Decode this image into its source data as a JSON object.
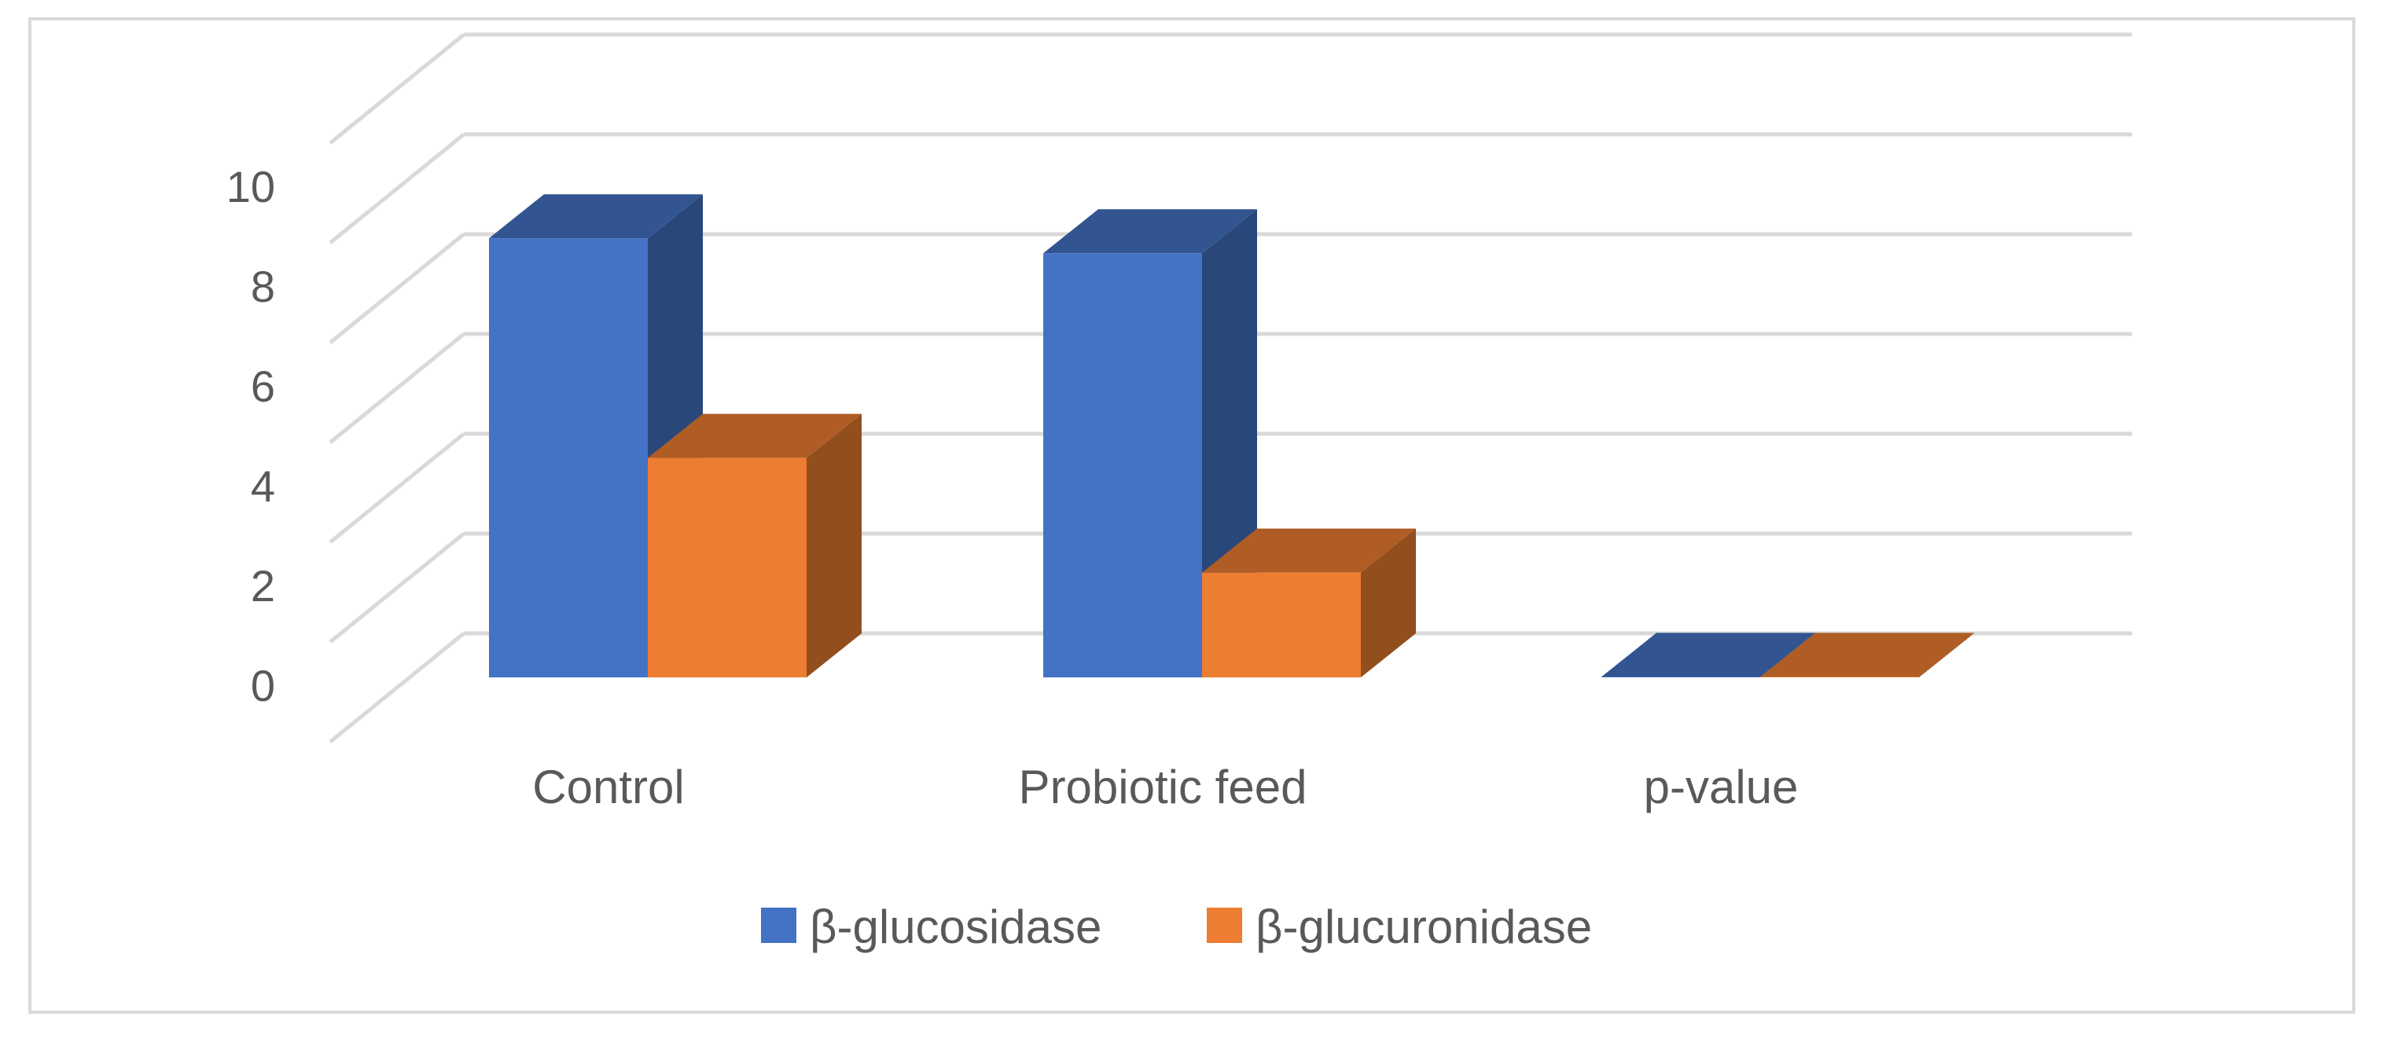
{
  "chart_data": {
    "type": "bar",
    "style": "3d-clustered-column",
    "title": "",
    "xlabel": "",
    "ylabel": "",
    "categories": [
      "Control",
      "Probiotic feed",
      "p-value"
    ],
    "series": [
      {
        "name": "β-glucosidase",
        "values": [
          8.8,
          8.5,
          0.01
        ],
        "color": "#4472C4"
      },
      {
        "name": "β-glucuronidase",
        "values": [
          4.4,
          2.1,
          0.01
        ],
        "color": "#ED7D31"
      }
    ],
    "ylim": [
      0,
      12
    ],
    "yticks": [
      0,
      2,
      4,
      6,
      8,
      10
    ],
    "ytick_labels": [
      "0",
      "2",
      "4",
      "6",
      "8",
      "10"
    ],
    "grid": true,
    "legend_position": "bottom"
  }
}
